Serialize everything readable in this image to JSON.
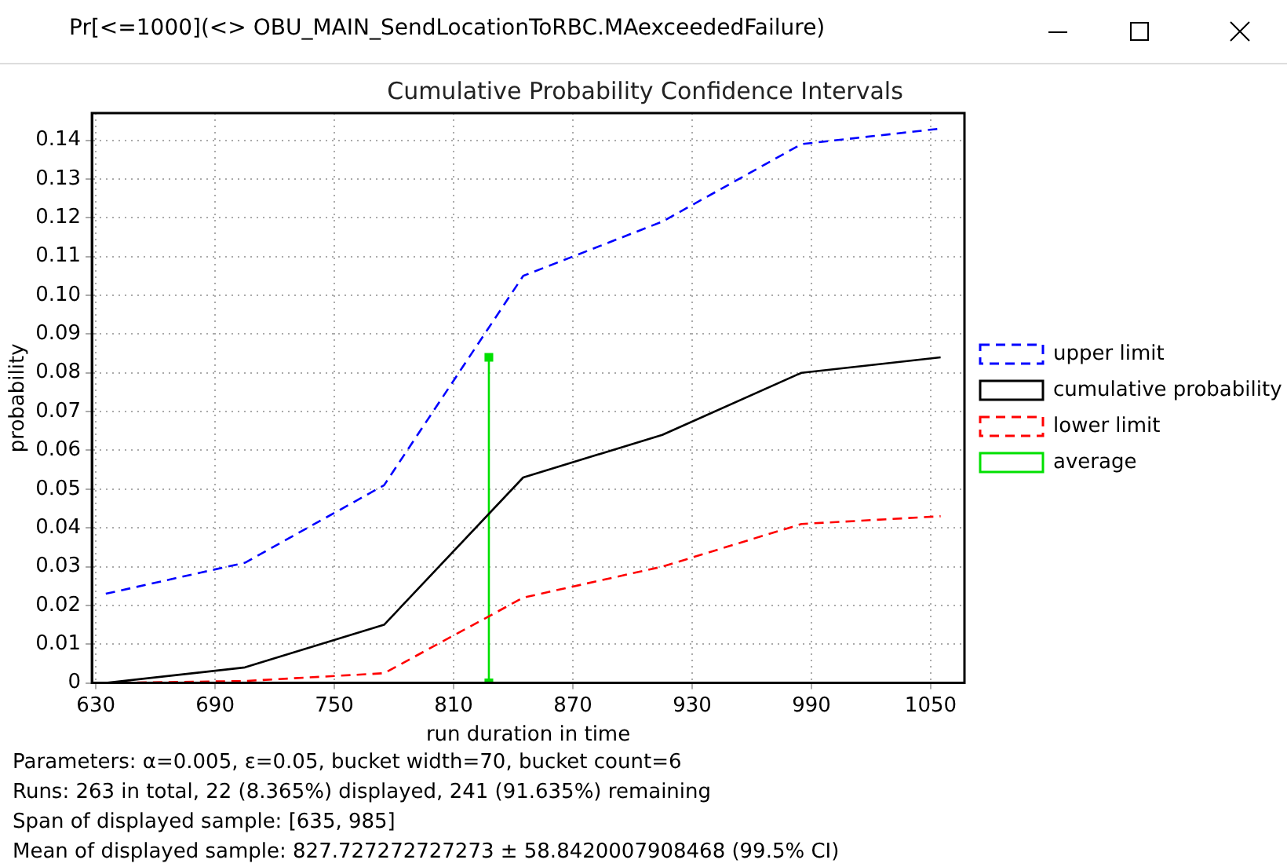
{
  "chart_data": {
    "type": "line",
    "title": "Cumulative Probability Confidence Intervals",
    "xlabel": "run duration in time",
    "ylabel": "probability",
    "annotations": [
      "Pr[<=1000](<> OBU_MAIN_SendLocationToRBC.MAexceededFailure)",
      "Parameters: α=0.005, ε=0.05, bucket width=70, bucket count=6",
      "Runs: 263 in total, 22 (8.365%) displayed, 241 (91.635%) remaining",
      "Span of displayed sample: [635, 985]",
      "Mean of displayed sample: 827.727272727273 ± 58.8420007908468 (99.5% CI)"
    ],
    "series": [
      {
        "name": "upper limit",
        "color": "#0000ff",
        "line_style": "dashed",
        "marker": "none",
        "x": [
          635,
          705,
          775,
          845,
          915,
          985,
          1055
        ],
        "values": [
          0.023,
          0.031,
          0.051,
          0.105,
          0.119,
          0.139,
          0.143
        ]
      },
      {
        "name": "cumulative probability",
        "color": "#000000",
        "line_style": "solid",
        "marker": "none",
        "x": [
          635,
          705,
          775,
          845,
          915,
          985,
          1055
        ],
        "values": [
          0.0,
          0.004,
          0.015,
          0.053,
          0.064,
          0.08,
          0.084
        ]
      },
      {
        "name": "lower limit",
        "color": "#ff0000",
        "line_style": "dashed",
        "marker": "none",
        "x": [
          635,
          705,
          775,
          845,
          915,
          985,
          1055
        ],
        "values": [
          0.0,
          0.0005,
          0.0025,
          0.022,
          0.03,
          0.041,
          0.043
        ]
      },
      {
        "name": "average",
        "color": "#00e000",
        "line_style": "solid",
        "marker": "square",
        "x": [
          827.727,
          827.727
        ],
        "values": [
          0,
          0.084
        ]
      }
    ],
    "xlim": [
      628,
      1067
    ],
    "xticks": [
      630,
      690,
      750,
      810,
      870,
      930,
      990,
      1050
    ],
    "ylim": [
      0,
      0.147
    ],
    "yticks": [
      0,
      0.01,
      0.02,
      0.03,
      0.04,
      0.05,
      0.06,
      0.07,
      0.08,
      0.09,
      {
        "value": 0.1,
        "label": "0.10"
      },
      0.11,
      0.12,
      0.13,
      0.14
    ],
    "grid": true,
    "legend": "right"
  }
}
